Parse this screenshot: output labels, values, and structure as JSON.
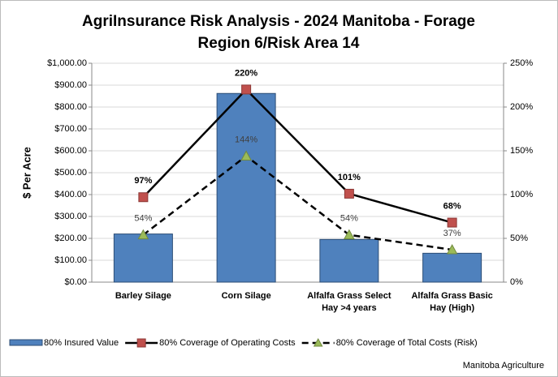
{
  "chart_data": {
    "type": "bar_line",
    "title": [
      "AgriInsurance Risk Analysis - 2024 Manitoba - Forage",
      "Region 6/Risk Area 14"
    ],
    "ylabel": "$ Per Acre",
    "source": "Manitoba Agriculture",
    "categories": [
      "Barley Silage",
      "Corn Silage",
      "Alfalfa Grass Select Hay >4 years",
      "Alfalfa Grass Basic Hay  (High)"
    ],
    "category_lines": [
      [
        "Barley Silage"
      ],
      [
        "Corn Silage"
      ],
      [
        "Alfalfa Grass Select",
        "Hay >4 years"
      ],
      [
        "Alfalfa Grass Basic",
        "Hay  (High)"
      ]
    ],
    "series": [
      {
        "name": "80% Insured Value",
        "kind": "bar",
        "color": "#4f81bd",
        "values": [
          220,
          862,
          195,
          132
        ]
      },
      {
        "name": "80% Coverage of Operating Costs",
        "kind": "line",
        "axis": "y2",
        "color": "#c0504d",
        "line_color": "#000000",
        "dashed": false,
        "marker": "square",
        "values": [
          97,
          220,
          101,
          68
        ],
        "value_labels": [
          "97%",
          "220%",
          "101%",
          "68%"
        ]
      },
      {
        "name": "80% Coverage of Total Costs (Risk)",
        "kind": "line",
        "axis": "y2",
        "color": "#9bbb59",
        "line_color": "#000000",
        "dashed": true,
        "marker": "triangle",
        "values": [
          54,
          144,
          54,
          37
        ],
        "value_labels": [
          "54%",
          "144%",
          "54%",
          "37%"
        ]
      }
    ],
    "ylim": [
      0,
      1000
    ],
    "yticks": [
      {
        "value": 0,
        "label": "$0.00"
      },
      {
        "value": 100,
        "label": "$100.00"
      },
      {
        "value": 200,
        "label": "$200.00"
      },
      {
        "value": 300,
        "label": "$300.00"
      },
      {
        "value": 400,
        "label": "$400.00"
      },
      {
        "value": 500,
        "label": "$500.00"
      },
      {
        "value": 600,
        "label": "$600.00"
      },
      {
        "value": 700,
        "label": "$700.00"
      },
      {
        "value": 800,
        "label": "$800.00"
      },
      {
        "value": 900,
        "label": "$900.00"
      },
      {
        "value": 1000,
        "label": "$1,000.00"
      }
    ],
    "y2lim": [
      0,
      250
    ],
    "y2ticks": [
      {
        "value": 0,
        "label": "0%"
      },
      {
        "value": 50,
        "label": "50%"
      },
      {
        "value": 100,
        "label": "100%"
      },
      {
        "value": 150,
        "label": "150%"
      },
      {
        "value": 200,
        "label": "200%"
      },
      {
        "value": 250,
        "label": "250%"
      }
    ],
    "grid": true
  }
}
